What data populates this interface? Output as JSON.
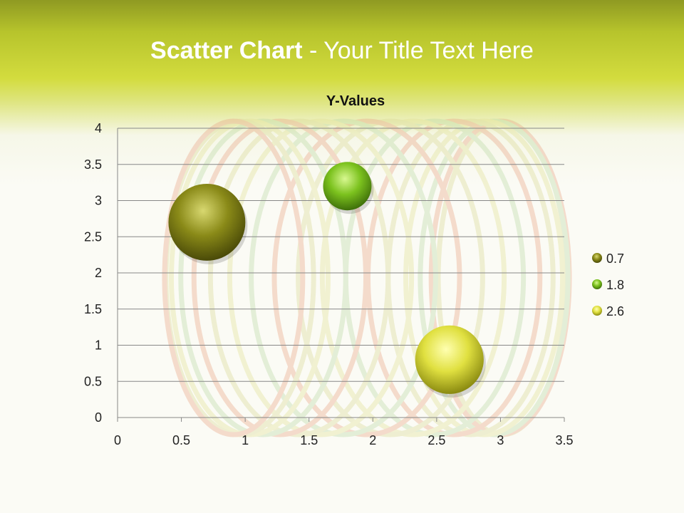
{
  "slide": {
    "title_bold": "Scatter Chart",
    "title_rest": " - Your Title Text Here"
  },
  "chart_data": {
    "type": "bubble",
    "title": "Y-Values",
    "xlim": [
      0,
      3.5
    ],
    "ylim": [
      0,
      4
    ],
    "xticks": [
      "0",
      "0.5",
      "1",
      "1.5",
      "2",
      "2.5",
      "3",
      "3.5"
    ],
    "yticks": [
      "0",
      "0.5",
      "1",
      "1.5",
      "2",
      "2.5",
      "3",
      "3.5",
      "4"
    ],
    "grid": "horizontal",
    "legend_position": "right",
    "points": [
      {
        "x": 0.7,
        "y": 2.7,
        "size": 2.9,
        "label": "0.7",
        "color": "#8a8a18"
      },
      {
        "x": 1.8,
        "y": 3.2,
        "size": 1.15,
        "label": "1.8",
        "color": "#7cc21e"
      },
      {
        "x": 2.6,
        "y": 0.8,
        "size": 2.3,
        "label": "2.6",
        "color": "#e0e040"
      }
    ]
  }
}
